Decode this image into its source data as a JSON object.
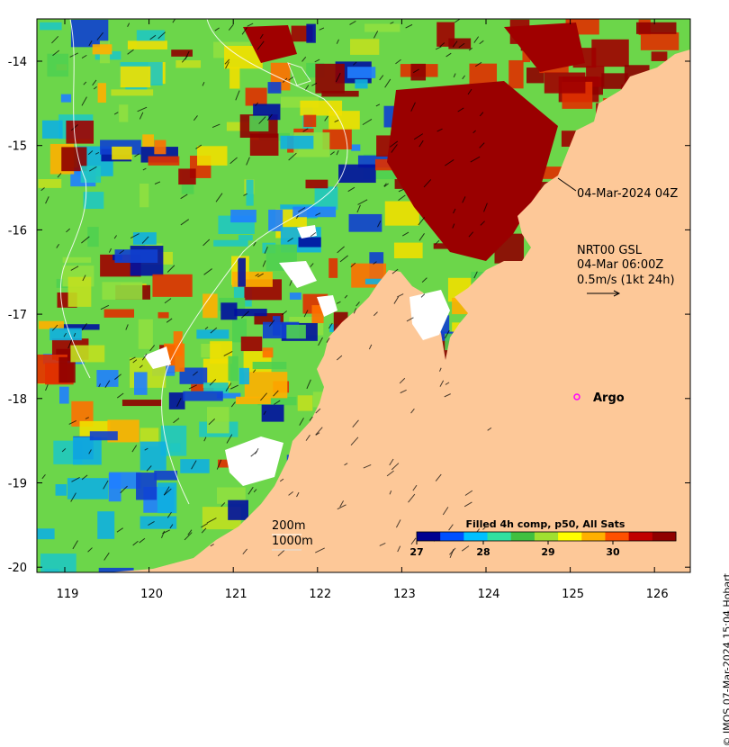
{
  "map": {
    "x_ticks": [
      "119",
      "120",
      "121",
      "122",
      "123",
      "124",
      "125",
      "126"
    ],
    "y_ticks": [
      "-14",
      "-15",
      "-16",
      "-17",
      "-18",
      "-19",
      "-20"
    ],
    "land_color": "#fdc898"
  },
  "annotations": {
    "time_label": "04-Mar-2024 04Z",
    "current_product": "NRT00 GSL",
    "current_time": "04-Mar 06:00Z",
    "vector_scale": "0.5m/s (1kt 24h)",
    "argo_label": "Argo",
    "isobath_200": "200m",
    "isobath_1000": "1000m"
  },
  "colorbar": {
    "title": "Filled 4h comp, p50, All Sats",
    "ticks": [
      "27",
      "28",
      "29",
      "30"
    ],
    "colors": [
      "#00008f",
      "#0050ff",
      "#00c0ff",
      "#30e0a0",
      "#40c040",
      "#a0e030",
      "#ffff00",
      "#ffb000",
      "#ff5000",
      "#c00000",
      "#8f0000"
    ]
  },
  "credit": "© IMOS 07-Mar-2024 15:04 Hobart"
}
